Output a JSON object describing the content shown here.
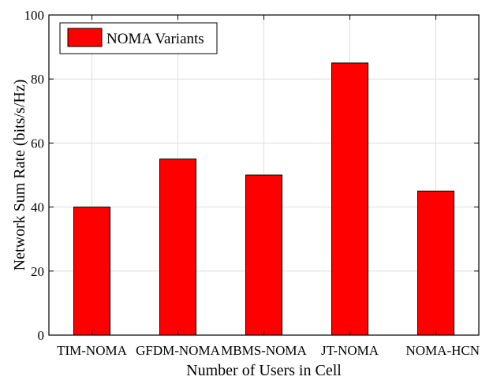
{
  "chart_data": {
    "type": "bar",
    "title": "",
    "xlabel": "Number of Users in Cell",
    "ylabel": "Network Sum Rate (bits/s/Hz)",
    "categories": [
      "TIM-NOMA",
      "GFDM-NOMA",
      "MBMS-NOMA",
      "JT-NOMA",
      "NOMA-HCN"
    ],
    "series": [
      {
        "name": "NOMA Variants",
        "values": [
          40,
          55,
          50,
          85,
          45
        ]
      }
    ],
    "ylim": [
      0,
      100
    ],
    "yticks": [
      0,
      20,
      40,
      60,
      80,
      100
    ],
    "ytick_labels": [
      "0",
      "20",
      "40",
      "60",
      "80",
      "100"
    ],
    "grid": true,
    "legend": {
      "position": "top-left",
      "entries": [
        "NOMA Variants"
      ]
    },
    "colors": {
      "bar": "#ff0000",
      "bar_edge": "#000000",
      "grid": "#dedede",
      "axes": "#000000"
    }
  }
}
